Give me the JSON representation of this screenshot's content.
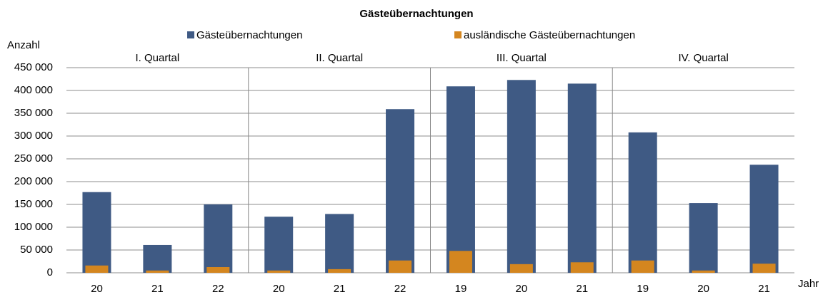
{
  "chart_data": {
    "type": "bar",
    "title": "Gästeübernachtungen",
    "y_label": "Anzahl",
    "x_label": "Jahr",
    "groups": [
      "I. Quartal",
      "II. Quartal",
      "III. Quartal",
      "IV. Quartal"
    ],
    "categories": [
      "20",
      "21",
      "22",
      "20",
      "21",
      "22",
      "19",
      "20",
      "21",
      "19",
      "20",
      "21"
    ],
    "series": [
      {
        "name": "Gästeübernachtungen",
        "color": "#3f5a84",
        "values": [
          177000,
          61000,
          150000,
          123000,
          129000,
          359000,
          409000,
          423000,
          415000,
          308000,
          153000,
          237000
        ]
      },
      {
        "name": "ausländische Gästeübernachtungen",
        "color": "#d4861f",
        "values": [
          16000,
          5000,
          12500,
          5000,
          8000,
          27000,
          48000,
          19000,
          23000,
          27000,
          5000,
          20000
        ]
      }
    ],
    "ylim": [
      0,
      450000
    ],
    "yticks": [
      0,
      {
        "value": 50000,
        "label": "50 000"
      },
      {
        "value": 100000,
        "label": "100 000"
      },
      {
        "value": 150000,
        "label": "150 000"
      },
      {
        "value": 200000,
        "label": "200 000"
      },
      {
        "value": 250000,
        "label": "250 000"
      },
      {
        "value": 300000,
        "label": "300 000"
      },
      {
        "value": 350000,
        "label": "350 000"
      },
      {
        "value": 400000,
        "label": "400 000"
      },
      {
        "value": 450000,
        "label": "450 000"
      }
    ],
    "grid": true
  }
}
